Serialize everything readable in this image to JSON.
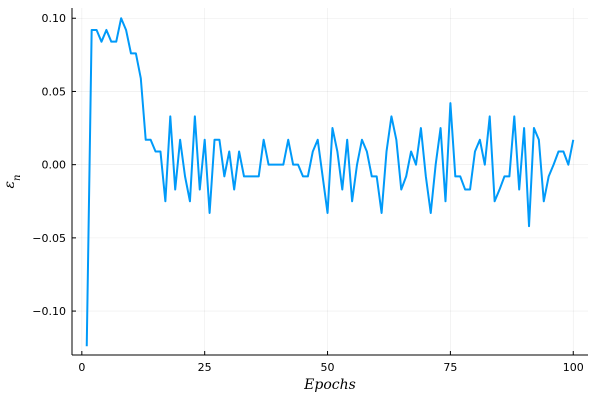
{
  "chart_data": {
    "type": "line",
    "title": "",
    "xlabel": "Epochs",
    "ylabel": "ε_n",
    "xlim": [
      -2.0,
      103.0
    ],
    "ylim": [
      -0.13,
      0.107
    ],
    "xticks": [
      0,
      25,
      50,
      75,
      100
    ],
    "xtick_labels": [
      "0",
      "25",
      "50",
      "75",
      "100"
    ],
    "yticks": [
      -0.1,
      -0.05,
      0.0,
      0.05,
      0.1
    ],
    "ytick_labels": [
      "−0.10",
      "−0.05",
      "0.00",
      "0.05",
      "0.10"
    ],
    "grid": true,
    "legend": "none",
    "series": [
      {
        "color": "#009af9",
        "x": [
          1,
          2,
          3,
          4,
          5,
          6,
          7,
          8,
          9,
          10,
          11,
          12,
          13,
          14,
          15,
          16,
          17,
          18,
          19,
          20,
          21,
          22,
          23,
          24,
          25,
          26,
          27,
          28,
          29,
          30,
          31,
          32,
          33,
          34,
          35,
          36,
          37,
          38,
          39,
          40,
          41,
          42,
          43,
          44,
          45,
          46,
          47,
          48,
          49,
          50,
          51,
          52,
          53,
          54,
          55,
          56,
          57,
          58,
          59,
          60,
          61,
          62,
          63,
          64,
          65,
          66,
          67,
          68,
          69,
          70,
          71,
          72,
          73,
          74,
          75,
          76,
          77,
          78,
          79,
          80,
          81,
          82,
          83,
          84,
          85,
          86,
          87,
          88,
          89,
          90,
          91,
          92,
          93,
          94,
          95,
          96,
          97,
          98,
          99,
          100
        ],
        "y": [
          -0.124,
          0.092,
          0.092,
          0.084,
          0.092,
          0.084,
          0.084,
          0.1,
          0.092,
          0.076,
          0.076,
          0.059,
          0.017,
          0.017,
          0.009,
          0.009,
          -0.025,
          0.033,
          -0.017,
          0.017,
          -0.008,
          -0.025,
          0.033,
          -0.017,
          0.017,
          -0.033,
          0.017,
          0.017,
          -0.008,
          0.009,
          -0.017,
          0.009,
          -0.008,
          -0.008,
          -0.008,
          -0.008,
          0.017,
          0.0,
          0.0,
          0.0,
          0.0,
          0.017,
          0.0,
          0.0,
          -0.008,
          -0.008,
          0.009,
          0.017,
          -0.008,
          -0.033,
          0.025,
          0.009,
          -0.017,
          0.017,
          -0.025,
          0.0,
          0.017,
          0.009,
          -0.008,
          -0.008,
          -0.033,
          0.009,
          0.033,
          0.017,
          -0.017,
          -0.008,
          0.009,
          0.0,
          0.025,
          -0.008,
          -0.033,
          0.0,
          0.025,
          -0.025,
          0.042,
          -0.008,
          -0.008,
          -0.017,
          -0.017,
          0.009,
          0.017,
          0.0,
          0.033,
          -0.025,
          -0.017,
          -0.008,
          -0.008,
          0.033,
          -0.017,
          0.025,
          -0.042,
          0.025,
          0.017,
          -0.025,
          -0.008,
          0.0,
          0.009,
          0.009,
          0.0,
          0.017
        ]
      }
    ]
  }
}
